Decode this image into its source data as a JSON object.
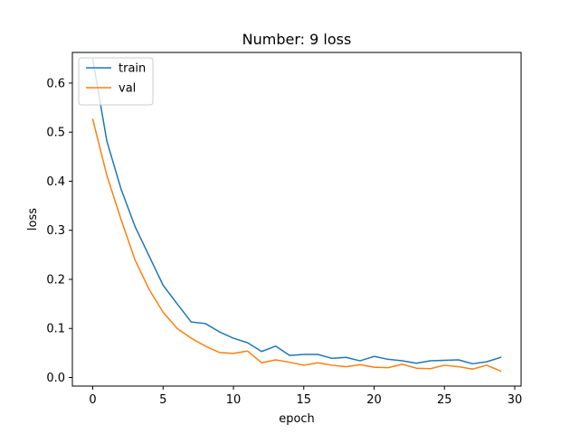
{
  "chart_data": {
    "type": "line",
    "title": "Number: 9 loss",
    "xlabel": "epoch",
    "ylabel": "loss",
    "xlim": [
      -1.45,
      30.45
    ],
    "ylim": [
      -0.0175,
      0.6625
    ],
    "xticks": [
      0,
      5,
      10,
      15,
      20,
      25,
      30
    ],
    "yticks": [
      0.0,
      0.1,
      0.2,
      0.3,
      0.4,
      0.5,
      0.6
    ],
    "ytick_labels": [
      "0.0",
      "0.1",
      "0.2",
      "0.3",
      "0.4",
      "0.5",
      "0.6"
    ],
    "grid": false,
    "legend_position": "upper-left",
    "x": [
      0,
      1,
      2,
      3,
      4,
      5,
      6,
      7,
      8,
      9,
      10,
      11,
      12,
      13,
      14,
      15,
      16,
      17,
      18,
      19,
      20,
      21,
      22,
      23,
      24,
      25,
      26,
      27,
      28,
      29
    ],
    "series": [
      {
        "name": "train",
        "color": "#1f77b4",
        "values": [
          0.648,
          0.482,
          0.385,
          0.308,
          0.248,
          0.188,
          0.15,
          0.113,
          0.11,
          0.093,
          0.08,
          0.071,
          0.053,
          0.064,
          0.045,
          0.047,
          0.047,
          0.039,
          0.041,
          0.034,
          0.043,
          0.037,
          0.034,
          0.029,
          0.034,
          0.035,
          0.036,
          0.028,
          0.032,
          0.041
        ]
      },
      {
        "name": "val",
        "color": "#ff7f0e",
        "values": [
          0.526,
          0.412,
          0.323,
          0.24,
          0.18,
          0.133,
          0.1,
          0.08,
          0.064,
          0.051,
          0.049,
          0.054,
          0.03,
          0.036,
          0.031,
          0.025,
          0.03,
          0.025,
          0.022,
          0.026,
          0.021,
          0.02,
          0.027,
          0.019,
          0.018,
          0.025,
          0.022,
          0.017,
          0.025,
          0.013
        ]
      }
    ]
  }
}
